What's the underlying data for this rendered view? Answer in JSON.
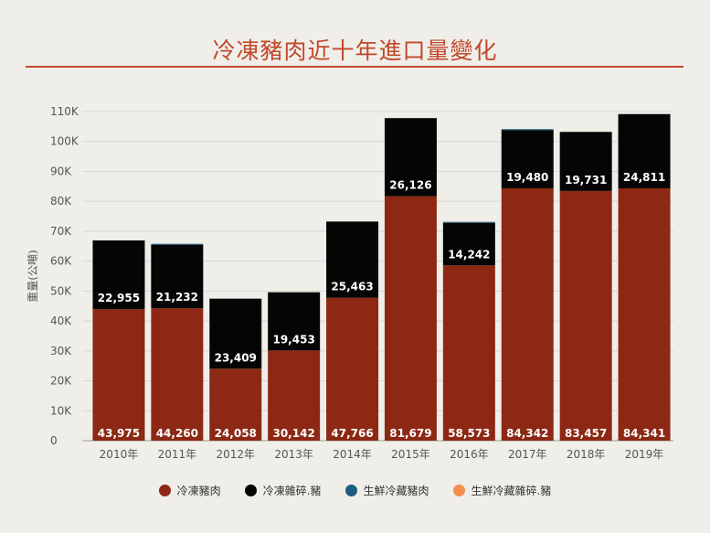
{
  "chart_data": {
    "type": "bar",
    "stacked": true,
    "title": "冷凍豬肉近十年進口量變化",
    "ylabel": "重量(公噸)",
    "xlabel": "",
    "ylim": [
      0,
      110000
    ],
    "yticks": [
      0,
      10000,
      20000,
      30000,
      40000,
      50000,
      60000,
      70000,
      80000,
      90000,
      100000,
      110000
    ],
    "ytick_labels": [
      "0",
      "10K",
      "20K",
      "30K",
      "40K",
      "50K",
      "60K",
      "70K",
      "80K",
      "90K",
      "100K",
      "110K"
    ],
    "categories": [
      "2010年",
      "2011年",
      "2012年",
      "2013年",
      "2014年",
      "2015年",
      "2016年",
      "2017年",
      "2018年",
      "2019年"
    ],
    "grid": true,
    "legend_position": "bottom",
    "series": [
      {
        "name": "冷凍豬肉",
        "color": "#8c2814",
        "values": [
          43975,
          44260,
          24058,
          30142,
          47766,
          81679,
          58573,
          84342,
          83457,
          84341
        ],
        "labels": [
          "43,975",
          "44,260",
          "24,058",
          "30,142",
          "47,766",
          "81,679",
          "58,573",
          "84,342",
          "83,457",
          "84,341"
        ]
      },
      {
        "name": "冷凍雜碎.豬",
        "color": "#050505",
        "values": [
          22955,
          21232,
          23409,
          19453,
          25463,
          26126,
          14242,
          19480,
          19731,
          24811
        ],
        "labels": [
          "22,955",
          "21,232",
          "23,409",
          "19,453",
          "25,463",
          "26,126",
          "14,242",
          "19,480",
          "19,731",
          "24,811"
        ]
      },
      {
        "name": "生鮮冷藏豬肉",
        "color": "#1c5d80",
        "values": [
          0,
          300,
          0,
          0,
          0,
          0,
          300,
          300,
          0,
          0
        ]
      },
      {
        "name": "生鮮冷藏雜碎.豬",
        "color": "#f28f4c",
        "values": [
          0,
          0,
          0,
          0,
          0,
          0,
          0,
          0,
          0,
          0
        ]
      }
    ]
  }
}
